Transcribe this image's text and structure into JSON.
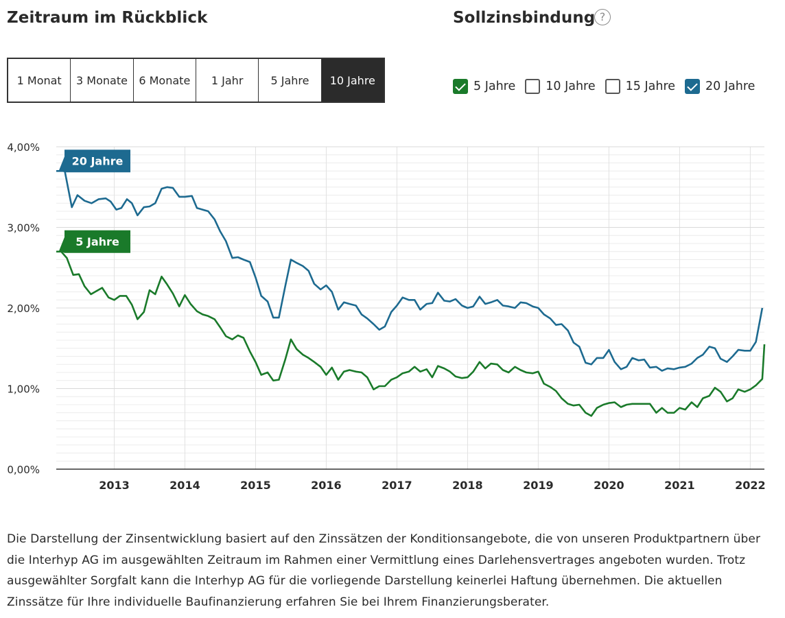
{
  "range": {
    "heading": "Zeitraum im Rückblick",
    "options": [
      "1 Monat",
      "3 Monate",
      "6 Monate",
      "1 Jahr",
      "5 Jahre",
      "10 Jahre"
    ],
    "selected": "10 Jahre"
  },
  "binding": {
    "heading": "Sollzinsbindung",
    "help_icon": "?",
    "options": [
      {
        "label": "5 Jahre",
        "checked": true,
        "color": "#1a7a2a"
      },
      {
        "label": "10 Jahre",
        "checked": false,
        "color": "#555555"
      },
      {
        "label": "15 Jahre",
        "checked": false,
        "color": "#555555"
      },
      {
        "label": "20 Jahre",
        "checked": true,
        "color": "#1d6a90"
      }
    ]
  },
  "chart_data": {
    "type": "line",
    "title": "",
    "xlabel": "",
    "ylabel": "",
    "ylim": [
      0,
      4
    ],
    "xlim": [
      2012.18,
      2022.2
    ],
    "y_ticks": [
      0,
      1,
      2,
      3,
      4
    ],
    "y_tick_labels": [
      "0,00%",
      "1,00%",
      "2,00%",
      "3,00%",
      "4,00%"
    ],
    "x_ticks": [
      2013,
      2014,
      2015,
      2016,
      2017,
      2018,
      2019,
      2020,
      2021,
      2022
    ],
    "x_tick_labels": [
      "2013",
      "2014",
      "2015",
      "2016",
      "2017",
      "2018",
      "2019",
      "2020",
      "2021",
      "2022"
    ],
    "grid": true,
    "series": [
      {
        "name": "20 Jahre",
        "color": "#1d6a90",
        "points": [
          [
            2012.18,
            3.7
          ],
          [
            2012.3,
            3.7
          ],
          [
            2012.4,
            3.25
          ],
          [
            2012.48,
            3.4
          ],
          [
            2012.58,
            3.33
          ],
          [
            2012.68,
            3.3
          ],
          [
            2012.78,
            3.35
          ],
          [
            2012.88,
            3.36
          ],
          [
            2012.95,
            3.32
          ],
          [
            2013.03,
            3.22
          ],
          [
            2013.1,
            3.24
          ],
          [
            2013.18,
            3.35
          ],
          [
            2013.25,
            3.3
          ],
          [
            2013.33,
            3.15
          ],
          [
            2013.42,
            3.25
          ],
          [
            2013.5,
            3.26
          ],
          [
            2013.58,
            3.3
          ],
          [
            2013.67,
            3.48
          ],
          [
            2013.75,
            3.5
          ],
          [
            2013.83,
            3.49
          ],
          [
            2013.92,
            3.38
          ],
          [
            2014.0,
            3.38
          ],
          [
            2014.1,
            3.39
          ],
          [
            2014.17,
            3.24
          ],
          [
            2014.25,
            3.22
          ],
          [
            2014.33,
            3.2
          ],
          [
            2014.42,
            3.1
          ],
          [
            2014.5,
            2.95
          ],
          [
            2014.58,
            2.83
          ],
          [
            2014.67,
            2.62
          ],
          [
            2014.75,
            2.63
          ],
          [
            2014.83,
            2.6
          ],
          [
            2014.92,
            2.57
          ],
          [
            2015.0,
            2.38
          ],
          [
            2015.08,
            2.15
          ],
          [
            2015.17,
            2.08
          ],
          [
            2015.25,
            1.88
          ],
          [
            2015.33,
            1.88
          ],
          [
            2015.42,
            2.27
          ],
          [
            2015.5,
            2.6
          ],
          [
            2015.58,
            2.56
          ],
          [
            2015.67,
            2.52
          ],
          [
            2015.75,
            2.46
          ],
          [
            2015.83,
            2.3
          ],
          [
            2015.92,
            2.23
          ],
          [
            2016.0,
            2.28
          ],
          [
            2016.08,
            2.2
          ],
          [
            2016.17,
            1.98
          ],
          [
            2016.25,
            2.07
          ],
          [
            2016.33,
            2.05
          ],
          [
            2016.42,
            2.03
          ],
          [
            2016.5,
            1.92
          ],
          [
            2016.58,
            1.87
          ],
          [
            2016.67,
            1.8
          ],
          [
            2016.75,
            1.73
          ],
          [
            2016.83,
            1.77
          ],
          [
            2016.92,
            1.95
          ],
          [
            2017.0,
            2.03
          ],
          [
            2017.08,
            2.13
          ],
          [
            2017.17,
            2.1
          ],
          [
            2017.25,
            2.1
          ],
          [
            2017.33,
            1.98
          ],
          [
            2017.42,
            2.05
          ],
          [
            2017.5,
            2.06
          ],
          [
            2017.58,
            2.19
          ],
          [
            2017.67,
            2.09
          ],
          [
            2017.75,
            2.08
          ],
          [
            2017.83,
            2.11
          ],
          [
            2017.92,
            2.03
          ],
          [
            2018.0,
            2.0
          ],
          [
            2018.08,
            2.02
          ],
          [
            2018.17,
            2.14
          ],
          [
            2018.25,
            2.05
          ],
          [
            2018.33,
            2.07
          ],
          [
            2018.42,
            2.1
          ],
          [
            2018.5,
            2.03
          ],
          [
            2018.58,
            2.02
          ],
          [
            2018.67,
            2.0
          ],
          [
            2018.75,
            2.07
          ],
          [
            2018.83,
            2.06
          ],
          [
            2018.92,
            2.02
          ],
          [
            2019.0,
            2.0
          ],
          [
            2019.08,
            1.92
          ],
          [
            2019.17,
            1.87
          ],
          [
            2019.25,
            1.79
          ],
          [
            2019.33,
            1.8
          ],
          [
            2019.42,
            1.72
          ],
          [
            2019.5,
            1.57
          ],
          [
            2019.58,
            1.52
          ],
          [
            2019.67,
            1.32
          ],
          [
            2019.75,
            1.3
          ],
          [
            2019.83,
            1.38
          ],
          [
            2019.92,
            1.38
          ],
          [
            2020.0,
            1.48
          ],
          [
            2020.08,
            1.33
          ],
          [
            2020.17,
            1.24
          ],
          [
            2020.25,
            1.27
          ],
          [
            2020.33,
            1.38
          ],
          [
            2020.42,
            1.35
          ],
          [
            2020.5,
            1.36
          ],
          [
            2020.58,
            1.26
          ],
          [
            2020.67,
            1.27
          ],
          [
            2020.75,
            1.22
          ],
          [
            2020.83,
            1.25
          ],
          [
            2020.92,
            1.24
          ],
          [
            2021.0,
            1.26
          ],
          [
            2021.08,
            1.27
          ],
          [
            2021.17,
            1.31
          ],
          [
            2021.25,
            1.38
          ],
          [
            2021.33,
            1.42
          ],
          [
            2021.42,
            1.52
          ],
          [
            2021.5,
            1.5
          ],
          [
            2021.58,
            1.37
          ],
          [
            2021.67,
            1.33
          ],
          [
            2021.75,
            1.4
          ],
          [
            2021.83,
            1.48
          ],
          [
            2021.92,
            1.47
          ],
          [
            2022.0,
            1.47
          ],
          [
            2022.08,
            1.58
          ],
          [
            2022.17,
            2.0
          ]
        ]
      },
      {
        "name": "5 Jahre",
        "color": "#1a7a2a",
        "points": [
          [
            2012.18,
            2.7
          ],
          [
            2012.25,
            2.7
          ],
          [
            2012.33,
            2.62
          ],
          [
            2012.42,
            2.41
          ],
          [
            2012.5,
            2.42
          ],
          [
            2012.58,
            2.27
          ],
          [
            2012.67,
            2.17
          ],
          [
            2012.75,
            2.21
          ],
          [
            2012.83,
            2.25
          ],
          [
            2012.92,
            2.13
          ],
          [
            2013.0,
            2.1
          ],
          [
            2013.08,
            2.15
          ],
          [
            2013.17,
            2.15
          ],
          [
            2013.25,
            2.04
          ],
          [
            2013.33,
            1.86
          ],
          [
            2013.42,
            1.95
          ],
          [
            2013.5,
            2.22
          ],
          [
            2013.58,
            2.17
          ],
          [
            2013.67,
            2.39
          ],
          [
            2013.75,
            2.29
          ],
          [
            2013.83,
            2.18
          ],
          [
            2013.92,
            2.02
          ],
          [
            2014.0,
            2.16
          ],
          [
            2014.08,
            2.05
          ],
          [
            2014.17,
            1.96
          ],
          [
            2014.25,
            1.92
          ],
          [
            2014.33,
            1.9
          ],
          [
            2014.42,
            1.86
          ],
          [
            2014.5,
            1.76
          ],
          [
            2014.58,
            1.65
          ],
          [
            2014.67,
            1.61
          ],
          [
            2014.75,
            1.66
          ],
          [
            2014.83,
            1.63
          ],
          [
            2014.92,
            1.46
          ],
          [
            2015.0,
            1.33
          ],
          [
            2015.08,
            1.17
          ],
          [
            2015.17,
            1.2
          ],
          [
            2015.25,
            1.1
          ],
          [
            2015.33,
            1.11
          ],
          [
            2015.42,
            1.36
          ],
          [
            2015.5,
            1.61
          ],
          [
            2015.58,
            1.49
          ],
          [
            2015.67,
            1.42
          ],
          [
            2015.75,
            1.38
          ],
          [
            2015.83,
            1.33
          ],
          [
            2015.92,
            1.27
          ],
          [
            2016.0,
            1.17
          ],
          [
            2016.08,
            1.26
          ],
          [
            2016.17,
            1.11
          ],
          [
            2016.25,
            1.21
          ],
          [
            2016.33,
            1.23
          ],
          [
            2016.42,
            1.21
          ],
          [
            2016.5,
            1.2
          ],
          [
            2016.58,
            1.14
          ],
          [
            2016.67,
            0.99
          ],
          [
            2016.75,
            1.03
          ],
          [
            2016.83,
            1.03
          ],
          [
            2016.92,
            1.11
          ],
          [
            2017.0,
            1.14
          ],
          [
            2017.08,
            1.19
          ],
          [
            2017.17,
            1.21
          ],
          [
            2017.25,
            1.27
          ],
          [
            2017.33,
            1.21
          ],
          [
            2017.42,
            1.24
          ],
          [
            2017.5,
            1.14
          ],
          [
            2017.58,
            1.28
          ],
          [
            2017.67,
            1.25
          ],
          [
            2017.75,
            1.21
          ],
          [
            2017.83,
            1.15
          ],
          [
            2017.92,
            1.13
          ],
          [
            2018.0,
            1.14
          ],
          [
            2018.08,
            1.21
          ],
          [
            2018.17,
            1.33
          ],
          [
            2018.25,
            1.25
          ],
          [
            2018.33,
            1.31
          ],
          [
            2018.42,
            1.3
          ],
          [
            2018.5,
            1.23
          ],
          [
            2018.58,
            1.2
          ],
          [
            2018.67,
            1.27
          ],
          [
            2018.75,
            1.23
          ],
          [
            2018.83,
            1.2
          ],
          [
            2018.92,
            1.19
          ],
          [
            2019.0,
            1.21
          ],
          [
            2019.08,
            1.06
          ],
          [
            2019.17,
            1.02
          ],
          [
            2019.25,
            0.97
          ],
          [
            2019.33,
            0.88
          ],
          [
            2019.42,
            0.81
          ],
          [
            2019.5,
            0.79
          ],
          [
            2019.58,
            0.8
          ],
          [
            2019.67,
            0.7
          ],
          [
            2019.75,
            0.66
          ],
          [
            2019.83,
            0.76
          ],
          [
            2019.92,
            0.8
          ],
          [
            2020.0,
            0.82
          ],
          [
            2020.08,
            0.83
          ],
          [
            2020.17,
            0.77
          ],
          [
            2020.25,
            0.8
          ],
          [
            2020.33,
            0.81
          ],
          [
            2020.42,
            0.81
          ],
          [
            2020.5,
            0.81
          ],
          [
            2020.58,
            0.81
          ],
          [
            2020.67,
            0.7
          ],
          [
            2020.75,
            0.76
          ],
          [
            2020.83,
            0.7
          ],
          [
            2020.92,
            0.7
          ],
          [
            2021.0,
            0.76
          ],
          [
            2021.08,
            0.74
          ],
          [
            2021.17,
            0.83
          ],
          [
            2021.25,
            0.77
          ],
          [
            2021.33,
            0.88
          ],
          [
            2021.42,
            0.91
          ],
          [
            2021.5,
            1.01
          ],
          [
            2021.58,
            0.96
          ],
          [
            2021.67,
            0.84
          ],
          [
            2021.75,
            0.88
          ],
          [
            2021.83,
            0.99
          ],
          [
            2021.92,
            0.96
          ],
          [
            2022.0,
            0.99
          ],
          [
            2022.08,
            1.04
          ],
          [
            2022.17,
            1.12
          ],
          [
            2022.2,
            1.55
          ]
        ]
      }
    ]
  },
  "footnote": "Die Darstellung der Zinsentwicklung basiert auf den Zinssätzen der Konditionsangebote, die von unseren Produktpartnern über die Interhyp AG im ausgewählten Zeitraum im Rahmen einer Vermittlung eines Darlehensvertrages angeboten wurden. Trotz ausgewählter Sorgfalt kann die Interhyp AG für die vorliegende Darstellung keinerlei Haftung übernehmen. Die aktuellen Zinssätze für Ihre individuelle Baufinanzierung erfahren Sie bei Ihrem Finanzierungsberater."
}
